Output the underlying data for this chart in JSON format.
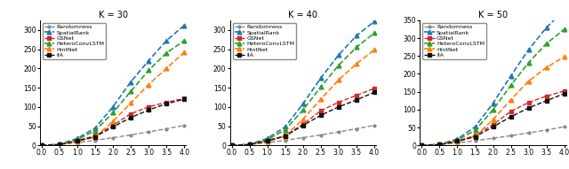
{
  "panels": [
    {
      "title": "K = 30",
      "ylim": [
        0,
        325
      ],
      "yticks": [
        0,
        50,
        100,
        150,
        200,
        250,
        300
      ],
      "xlim": [
        -0.05,
        4.05
      ],
      "xticks": [
        0.0,
        0.5,
        1.0,
        1.5,
        2.0,
        2.5,
        3.0,
        3.5,
        4.0
      ]
    },
    {
      "title": "K = 40",
      "ylim": [
        0,
        325
      ],
      "yticks": [
        0,
        50,
        100,
        150,
        200,
        250,
        300
      ],
      "xlim": [
        -0.05,
        4.05
      ],
      "xticks": [
        0.0,
        0.5,
        1.0,
        1.5,
        2.0,
        2.5,
        3.0,
        3.5,
        4.0
      ]
    },
    {
      "title": "K = 50",
      "ylim": [
        0,
        350
      ],
      "yticks": [
        0,
        50,
        100,
        150,
        200,
        250,
        300,
        350
      ],
      "xlim": [
        -0.05,
        4.05
      ],
      "xticks": [
        0.0,
        0.5,
        1.0,
        1.5,
        2.0,
        2.5,
        3.0,
        3.5,
        4.0
      ]
    }
  ],
  "series": [
    {
      "label": "Randomness",
      "color": "#888888",
      "linestyle": "--",
      "marker": "o",
      "markersize": 2,
      "linewidth": 1.0,
      "values_K30": [
        0,
        2,
        7,
        13,
        20,
        27,
        35,
        43,
        52
      ],
      "values_K40": [
        0,
        2,
        7,
        13,
        20,
        27,
        35,
        43,
        52
      ],
      "values_K50": [
        0,
        2,
        7,
        13,
        20,
        27,
        35,
        43,
        52
      ]
    },
    {
      "label": "SpatialRank",
      "color": "#1f77b4",
      "linestyle": "--",
      "marker": "^",
      "markersize": 3.5,
      "linewidth": 1.2,
      "values_K30": [
        0,
        3,
        18,
        45,
        100,
        165,
        220,
        272,
        312
      ],
      "values_K40": [
        0,
        3,
        18,
        48,
        108,
        175,
        235,
        285,
        322
      ],
      "values_K50": [
        0,
        3,
        18,
        52,
        118,
        195,
        268,
        330,
        378
      ]
    },
    {
      "label": "GSNet",
      "color": "#d62728",
      "linestyle": "--",
      "marker": "s",
      "markersize": 2.5,
      "linewidth": 1.0,
      "values_K30": [
        0,
        2,
        12,
        25,
        52,
        82,
        100,
        112,
        122
      ],
      "values_K40": [
        0,
        2,
        12,
        25,
        55,
        90,
        112,
        130,
        148
      ],
      "values_K50": [
        0,
        2,
        12,
        28,
        58,
        95,
        120,
        138,
        152
      ]
    },
    {
      "label": "HeteroConvLSTM",
      "color": "#2ca02c",
      "linestyle": "--",
      "marker": "^",
      "markersize": 3.5,
      "linewidth": 1.2,
      "values_K30": [
        0,
        2,
        15,
        38,
        85,
        140,
        195,
        240,
        272
      ],
      "values_K40": [
        0,
        2,
        15,
        40,
        92,
        152,
        208,
        255,
        292
      ],
      "values_K50": [
        0,
        2,
        15,
        42,
        100,
        168,
        232,
        285,
        325
      ]
    },
    {
      "label": "HintNet",
      "color": "#ff7f0e",
      "linestyle": "--",
      "marker": "^",
      "markersize": 3.5,
      "linewidth": 1.2,
      "values_K30": [
        0,
        2,
        10,
        22,
        62,
        110,
        158,
        200,
        242
      ],
      "values_K40": [
        0,
        2,
        10,
        24,
        68,
        120,
        170,
        212,
        248
      ],
      "values_K50": [
        0,
        2,
        10,
        26,
        72,
        128,
        180,
        218,
        248
      ]
    },
    {
      "label": "IIA",
      "color": "#111111",
      "linestyle": "--",
      "marker": "s",
      "markersize": 2.5,
      "linewidth": 1.0,
      "values_K30": [
        0,
        2,
        12,
        22,
        48,
        72,
        92,
        108,
        120
      ],
      "values_K40": [
        0,
        2,
        12,
        24,
        52,
        78,
        100,
        118,
        138
      ],
      "values_K50": [
        0,
        2,
        12,
        24,
        52,
        80,
        105,
        125,
        145
      ]
    }
  ],
  "x_values": [
    0.0,
    0.5,
    1.0,
    1.5,
    2.0,
    2.5,
    3.0,
    3.5,
    4.0
  ],
  "title_fontsize": 7,
  "legend_fontsize": 4.5,
  "tick_fontsize": 5.5
}
